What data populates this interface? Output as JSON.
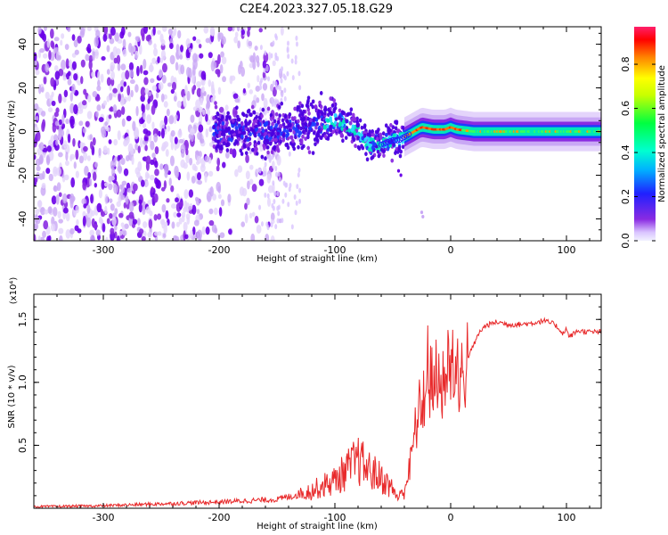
{
  "title": "C2E4.2023.327.05.18.G29",
  "colorbar": {
    "label": "Normalized spectral amplitude",
    "ticks": [
      "0.0",
      "0.2",
      "0.4",
      "0.6",
      "0.8"
    ],
    "tick_values": [
      0.0,
      0.2,
      0.4,
      0.6,
      0.8
    ],
    "range": [
      0,
      0.97
    ]
  },
  "chart_data": [
    {
      "type": "heatmap",
      "xlabel": "Height of straight line (km)",
      "ylabel": "Frequency (Hz)",
      "xlim": [
        -360,
        130
      ],
      "ylim": [
        -50,
        48
      ],
      "xticks": [
        -300,
        -200,
        -100,
        0,
        100
      ],
      "xtick_labels": [
        "-300",
        "-200",
        "-100",
        "0",
        "100"
      ],
      "yticks": [
        -40,
        -20,
        0,
        20,
        40
      ],
      "ytick_labels": [
        "-40",
        "-20",
        "0",
        "20",
        "40"
      ],
      "colorscale": "rainbow (purple=0 to red=1)",
      "ridge_x": [
        -200,
        -150,
        -120,
        -100,
        -90,
        -80,
        -70,
        -60,
        -50,
        -45,
        -35,
        -25,
        -15,
        -5,
        0,
        5,
        20,
        50,
        100,
        130
      ],
      "ridge_freq": [
        0,
        0,
        3,
        5,
        3,
        0,
        -6,
        -6,
        -4,
        -4,
        -1,
        2,
        1,
        1,
        2,
        1,
        0,
        0,
        0,
        0
      ]
    },
    {
      "type": "line",
      "xlabel": "Height of straight line (km)",
      "ylabel": "SNR (10 * v/v)",
      "y_multiplier": "(x10⁴)",
      "xlim": [
        -360,
        130
      ],
      "ylim": [
        0,
        17000
      ],
      "xticks": [
        -300,
        -200,
        -100,
        0,
        100
      ],
      "xtick_labels": [
        "-300",
        "-200",
        "-100",
        "0",
        "100"
      ],
      "yticks": [
        5000,
        10000,
        15000
      ],
      "ytick_labels": [
        "0.5",
        "1.0",
        "1.5"
      ],
      "color": "#e8292a",
      "series": [
        {
          "x": [
            -360,
            -300,
            -250,
            -200,
            -150,
            -140,
            -120,
            -100,
            -90,
            -80,
            -70,
            -60,
            -50,
            -45,
            -40,
            -35,
            -30,
            -25,
            -20,
            -15,
            -10,
            -5,
            0,
            5,
            10,
            15,
            20,
            25,
            30,
            40,
            50,
            60,
            70,
            80,
            90,
            98,
            100,
            102,
            110,
            120,
            130
          ],
          "values": [
            120,
            200,
            350,
            500,
            700,
            900,
            1400,
            2200,
            3000,
            3800,
            3000,
            2400,
            1500,
            800,
            1500,
            3500,
            6500,
            8500,
            9500,
            10500,
            9500,
            10500,
            11500,
            11800,
            10500,
            12000,
            13000,
            14000,
            14500,
            14800,
            14600,
            14600,
            14700,
            14900,
            14600,
            13800,
            14400,
            13600,
            14100,
            14000,
            14000
          ]
        }
      ]
    }
  ]
}
